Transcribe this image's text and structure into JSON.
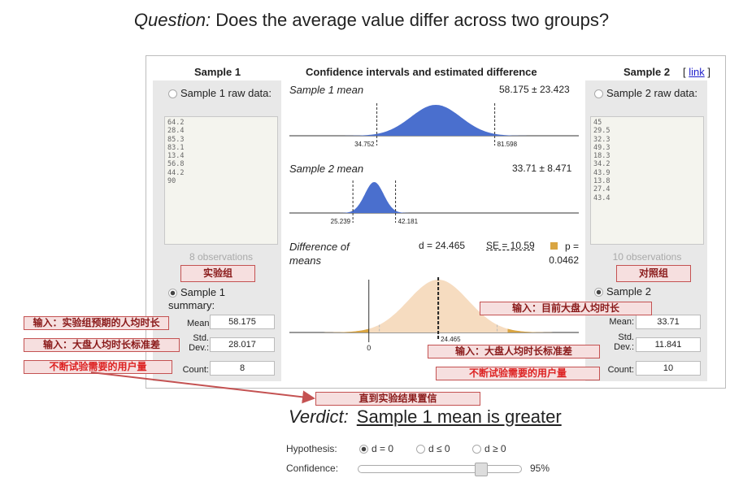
{
  "question": {
    "label": "Question:",
    "text": " Does the average value differ across two groups?"
  },
  "headers": {
    "sample1": "Sample 1",
    "center": "Confidence intervals and estimated difference",
    "sample2": "Sample 2",
    "link_open": "[ ",
    "link": "link",
    "link_close": " ]"
  },
  "sample1": {
    "raw_label": "Sample 1 raw data:",
    "raw_values": [
      "64.2",
      "28.4",
      "85.3",
      "83.1",
      "13.4",
      "56.8",
      "44.2",
      "90"
    ],
    "observations": "8 observations",
    "group_button": "实验组",
    "summary_label": "Sample 1 summary:",
    "mean_label": "Mean:",
    "mean": "58.175",
    "sd_label": "Std. Dev.:",
    "sd": "28.017",
    "count_label": "Count:",
    "count": "8"
  },
  "sample2": {
    "raw_label": "Sample 2 raw data:",
    "raw_values": [
      "45",
      "29.5",
      "32.3",
      "49.3",
      "18.3",
      "34.2",
      "43.9",
      "13.8",
      "27.4",
      "43.4"
    ],
    "observations": "10 observations",
    "group_button": "对照组",
    "summary_label": "Sample 2",
    "mean_label": "Mean:",
    "mean": "33.71",
    "sd_label": "Std. Dev.:",
    "sd": "11.841",
    "count_label": "Count:",
    "count": "10"
  },
  "center": {
    "s1_title": "Sample 1 mean",
    "s1_value": "58.175 ± 23.423",
    "s1_low": "34.752",
    "s1_high": "81.598",
    "s2_title": "Sample 2 mean",
    "s2_value": "33.71 ± 8.471",
    "s2_low": "25.239",
    "s2_high": "42.181",
    "diff_title": "Difference of means",
    "diff_d": "d = 24.465",
    "diff_se": "SE = 10.59",
    "diff_p": "p = 0.0462",
    "diff_zero": "0",
    "diff_mark": "24.465"
  },
  "annotations": {
    "left_mean": "输入：实验组预期的人均时长",
    "left_sd": "输入：大盘人均时长标准差",
    "left_count": "不断试验需要的用户量",
    "right_mean": "输入：目前大盘人均时长",
    "right_sd": "输入：大盘人均时长标准差",
    "right_count": "不断试验需要的用户量",
    "bottom": "直到实验结果置信"
  },
  "verdict": {
    "label": "Verdict:",
    "result": "Sample 1 mean is greater"
  },
  "hypothesis": {
    "label": "Hypothesis:",
    "options": [
      "d = 0",
      "d ≤ 0",
      "d ≥ 0"
    ],
    "selected": 0
  },
  "confidence": {
    "label": "Confidence:",
    "value_text": "95%",
    "value": 0.95
  },
  "colors": {
    "blue": "#4a6fce",
    "orange": "#d9a542",
    "peach": "#f6dcc0",
    "annotation_border": "#c45252",
    "annotation_fill": "#f6dfdf"
  }
}
